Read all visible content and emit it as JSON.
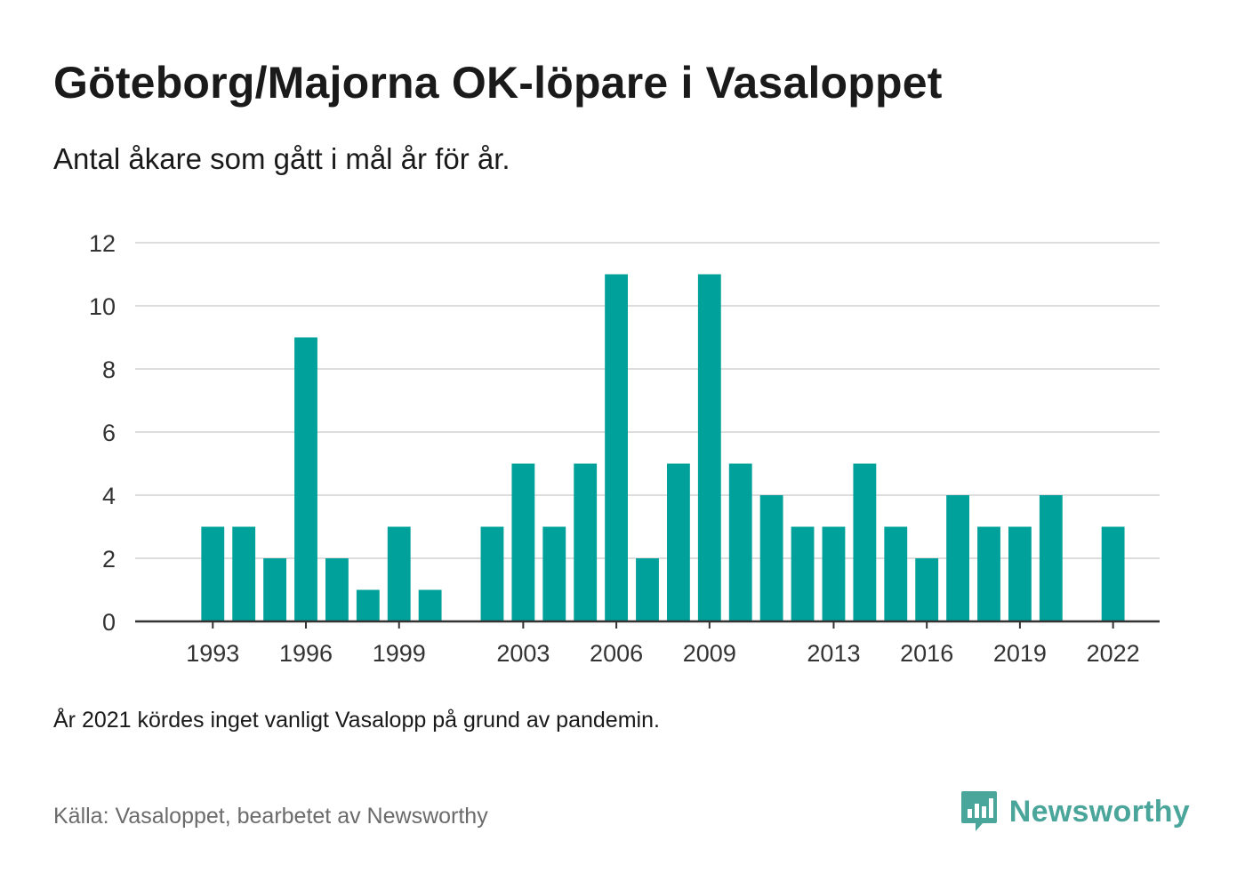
{
  "title": "Göteborg/Majorna OK-löpare i Vasaloppet",
  "subtitle": "Antal åkare som gått i mål år för år.",
  "note": "År 2021 kördes inget vanligt Vasalopp på grund av pandemin.",
  "source": "Källa: Vasaloppet, bearbetet av Newsworthy",
  "brand": {
    "name": "Newsworthy",
    "icon": "newsworthy-logo-icon",
    "color": "#4aa59a"
  },
  "colors": {
    "bar": "#00a19a",
    "grid": "#dddddd",
    "axis": "#333333"
  },
  "chart_data": {
    "type": "bar",
    "x": [
      1993,
      1994,
      1995,
      1996,
      1997,
      1998,
      1999,
      2000,
      2002,
      2003,
      2004,
      2005,
      2006,
      2007,
      2008,
      2009,
      2010,
      2011,
      2012,
      2013,
      2014,
      2015,
      2016,
      2017,
      2018,
      2019,
      2020,
      2022
    ],
    "values": [
      3,
      3,
      2,
      9,
      2,
      1,
      3,
      1,
      3,
      5,
      3,
      5,
      11,
      2,
      5,
      11,
      5,
      4,
      3,
      3,
      5,
      3,
      2,
      4,
      3,
      3,
      4,
      3
    ],
    "x_tick_labels": [
      "1993",
      "1996",
      "1999",
      "2003",
      "2006",
      "2009",
      "2013",
      "2016",
      "2019",
      "2022"
    ],
    "y_ticks": [
      0,
      2,
      4,
      6,
      8,
      10,
      12
    ],
    "xlim": [
      1991,
      2023
    ],
    "ylim": [
      0,
      12
    ],
    "grid": true,
    "xlabel": "",
    "ylabel": ""
  }
}
